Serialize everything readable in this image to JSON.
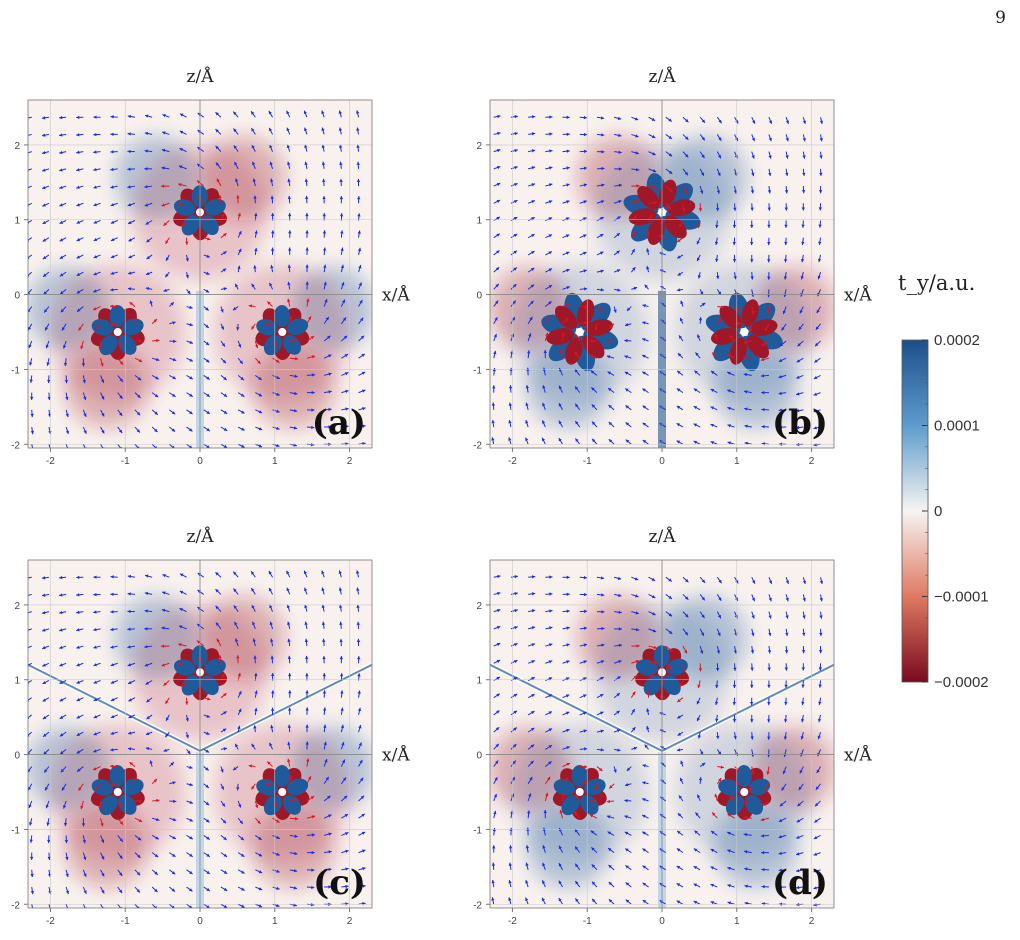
{
  "page_number": "9",
  "chart_data": [
    {
      "type": "heatmap",
      "panel_label": "(a)",
      "xlabel": "x/Å",
      "ylabel": "z/Å",
      "xlim": [
        -2.3,
        2.3
      ],
      "ylim": [
        -2.05,
        2.6
      ],
      "xticks": [
        "-2",
        "-1",
        "0",
        "1",
        "2"
      ],
      "yticks": [
        "-2",
        "-1",
        "0",
        "1",
        "2"
      ]
    },
    {
      "type": "heatmap",
      "panel_label": "(b)",
      "xlabel": "x/Å",
      "ylabel": "z/Å",
      "xlim": [
        -2.3,
        2.3
      ],
      "ylim": [
        -2.05,
        2.6
      ],
      "xticks": [
        "-2",
        "-1",
        "0",
        "1",
        "2"
      ],
      "yticks": [
        "-2",
        "-1",
        "0",
        "1",
        "2"
      ]
    },
    {
      "type": "heatmap",
      "panel_label": "(c)",
      "xlabel": "x/Å",
      "ylabel": "z/Å",
      "xlim": [
        -2.3,
        2.3
      ],
      "ylim": [
        -2.05,
        2.6
      ],
      "xticks": [
        "-2",
        "-1",
        "0",
        "1",
        "2"
      ],
      "yticks": [
        "-2",
        "-1",
        "0",
        "1",
        "2"
      ]
    },
    {
      "type": "heatmap",
      "panel_label": "(d)",
      "xlabel": "x/Å",
      "ylabel": "z/Å",
      "xlim": [
        -2.3,
        2.3
      ],
      "ylim": [
        -2.05,
        2.6
      ],
      "xticks": [
        "-2",
        "-1",
        "0",
        "1",
        "2"
      ],
      "yticks": [
        "-2",
        "-1",
        "0",
        "1",
        "2"
      ]
    }
  ],
  "colorbar": {
    "title": "t_y/a.u.",
    "range": [
      -0.0002,
      0.0002
    ],
    "ticks": [
      "0.0002",
      "0.0001",
      "0",
      "−0.0001",
      "−0.0002"
    ],
    "colors": {
      "max": "#1d4f8a",
      "mid": "#f7f4f2",
      "min": "#7a0a1e"
    }
  },
  "colors": {
    "positive": "#1f5a9a",
    "negative": "#a01828",
    "arrow_blue": "#1a2ee0",
    "arrow_red": "#e0141e"
  }
}
